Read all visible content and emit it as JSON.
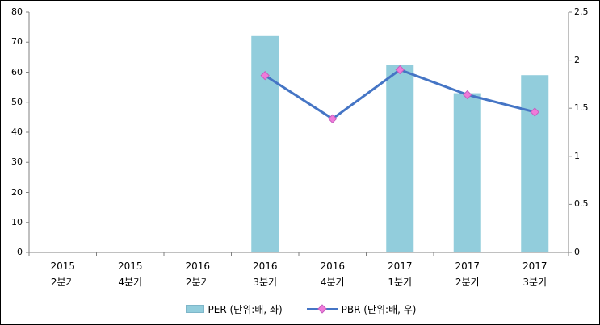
{
  "window": {
    "background": "#ffffff",
    "border_color": "#000000"
  },
  "chart_data": {
    "type": "bar+line",
    "title": "",
    "grid": false,
    "legend_position": "bottom",
    "axis_color": "#808080",
    "categories": [
      {
        "year": "2015",
        "quarter": "2분기"
      },
      {
        "year": "2015",
        "quarter": "4분기"
      },
      {
        "year": "2016",
        "quarter": "2분기"
      },
      {
        "year": "2016",
        "quarter": "3분기"
      },
      {
        "year": "2016",
        "quarter": "4분기"
      },
      {
        "year": "2017",
        "quarter": "1분기"
      },
      {
        "year": "2017",
        "quarter": "2분기"
      },
      {
        "year": "2017",
        "quarter": "3분기"
      }
    ],
    "series": [
      {
        "name": "PER (단위:배, 좌)",
        "type": "bar",
        "axis": "left",
        "color": "#92CDDC",
        "values": [
          null,
          null,
          null,
          72,
          null,
          62.5,
          53,
          59
        ]
      },
      {
        "name": "PBR (단위:배, 우)",
        "type": "line",
        "axis": "right",
        "color": "#4575C5",
        "marker": "diamond",
        "marker_color": "#F07AD9",
        "marker_border_color": "#C45FBE",
        "values": [
          null,
          null,
          null,
          1.84,
          1.39,
          1.9,
          1.64,
          1.46
        ]
      }
    ],
    "left_axis": {
      "min": 0,
      "max": 80,
      "step": 10,
      "tick_labels": [
        "0",
        "10",
        "20",
        "30",
        "40",
        "50",
        "60",
        "70",
        "80"
      ]
    },
    "right_axis": {
      "min": 0,
      "max": 2.5,
      "step": 0.5,
      "tick_labels": [
        "0",
        "0.5",
        "1",
        "1.5",
        "2",
        "2.5"
      ]
    }
  },
  "legend": {
    "per_label": "PER (단위:배, 좌)",
    "pbr_label": "PBR (단위:배, 우)"
  }
}
